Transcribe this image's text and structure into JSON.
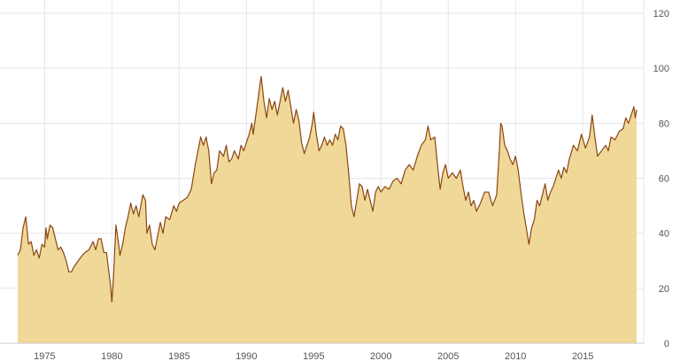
{
  "chart_data": {
    "type": "area",
    "title": "",
    "xlabel": "",
    "ylabel": "",
    "xlim": [
      1973,
      2019.2
    ],
    "ylim": [
      0,
      120
    ],
    "y_axis_position": "right",
    "grid": true,
    "x_ticks": [
      {
        "value": 1975,
        "label": "1975"
      },
      {
        "value": 1980,
        "label": "1980"
      },
      {
        "value": 1985,
        "label": "1985"
      },
      {
        "value": 1990,
        "label": "1990"
      },
      {
        "value": 1995,
        "label": "1995"
      },
      {
        "value": 2000,
        "label": "2000"
      },
      {
        "value": 2005,
        "label": "2005"
      },
      {
        "value": 2010,
        "label": "2010"
      },
      {
        "value": 2015,
        "label": "2015"
      }
    ],
    "y_ticks": [
      {
        "value": 0,
        "label": "0"
      },
      {
        "value": 20,
        "label": "20"
      },
      {
        "value": 40,
        "label": "40"
      },
      {
        "value": 60,
        "label": "60"
      },
      {
        "value": 80,
        "label": "80"
      },
      {
        "value": 100,
        "label": "100"
      },
      {
        "value": 120,
        "label": "120"
      }
    ],
    "colors": {
      "line": "#8b4513",
      "fill": "#f0d898",
      "grid": "#e6e6e6",
      "text": "#555555"
    },
    "points": [
      [
        1973.0,
        32
      ],
      [
        1973.2,
        34
      ],
      [
        1973.4,
        42
      ],
      [
        1973.6,
        46
      ],
      [
        1973.8,
        36
      ],
      [
        1974.0,
        37
      ],
      [
        1974.2,
        32
      ],
      [
        1974.4,
        34
      ],
      [
        1974.6,
        31
      ],
      [
        1974.8,
        36
      ],
      [
        1975.0,
        35
      ],
      [
        1975.1,
        42
      ],
      [
        1975.2,
        38
      ],
      [
        1975.4,
        43
      ],
      [
        1975.6,
        42
      ],
      [
        1975.8,
        38
      ],
      [
        1976.0,
        34
      ],
      [
        1976.2,
        35
      ],
      [
        1976.4,
        33
      ],
      [
        1976.6,
        30
      ],
      [
        1976.8,
        26
      ],
      [
        1977.0,
        26
      ],
      [
        1977.2,
        28
      ],
      [
        1977.5,
        30
      ],
      [
        1977.8,
        32
      ],
      [
        1978.0,
        33
      ],
      [
        1978.3,
        34
      ],
      [
        1978.6,
        37
      ],
      [
        1978.8,
        34
      ],
      [
        1979.0,
        38
      ],
      [
        1979.2,
        38
      ],
      [
        1979.4,
        33
      ],
      [
        1979.6,
        33
      ],
      [
        1979.8,
        25
      ],
      [
        1979.9,
        21
      ],
      [
        1980.0,
        15
      ],
      [
        1980.1,
        22
      ],
      [
        1980.3,
        43
      ],
      [
        1980.45,
        38
      ],
      [
        1980.6,
        32
      ],
      [
        1980.8,
        36
      ],
      [
        1981.0,
        42
      ],
      [
        1981.2,
        46
      ],
      [
        1981.4,
        51
      ],
      [
        1981.6,
        47
      ],
      [
        1981.8,
        50
      ],
      [
        1982.0,
        46
      ],
      [
        1982.3,
        54
      ],
      [
        1982.5,
        52
      ],
      [
        1982.6,
        40
      ],
      [
        1982.8,
        43
      ],
      [
        1983.0,
        36
      ],
      [
        1983.2,
        34
      ],
      [
        1983.4,
        39
      ],
      [
        1983.6,
        44
      ],
      [
        1983.8,
        40
      ],
      [
        1984.0,
        46
      ],
      [
        1984.3,
        45
      ],
      [
        1984.6,
        50
      ],
      [
        1984.8,
        48
      ],
      [
        1985.0,
        51
      ],
      [
        1985.3,
        52
      ],
      [
        1985.6,
        53
      ],
      [
        1985.9,
        56
      ],
      [
        1986.2,
        65
      ],
      [
        1986.4,
        70
      ],
      [
        1986.6,
        75
      ],
      [
        1986.8,
        72
      ],
      [
        1987.0,
        75
      ],
      [
        1987.2,
        70
      ],
      [
        1987.4,
        58
      ],
      [
        1987.6,
        62
      ],
      [
        1987.8,
        63
      ],
      [
        1988.0,
        70
      ],
      [
        1988.3,
        68
      ],
      [
        1988.5,
        72
      ],
      [
        1988.7,
        66
      ],
      [
        1988.9,
        67
      ],
      [
        1989.1,
        70
      ],
      [
        1989.4,
        67
      ],
      [
        1989.6,
        72
      ],
      [
        1989.8,
        70
      ],
      [
        1990.0,
        73
      ],
      [
        1990.2,
        76
      ],
      [
        1990.4,
        80
      ],
      [
        1990.5,
        76
      ],
      [
        1990.7,
        83
      ],
      [
        1990.9,
        90
      ],
      [
        1991.0,
        94
      ],
      [
        1991.1,
        97
      ],
      [
        1991.3,
        88
      ],
      [
        1991.5,
        82
      ],
      [
        1991.7,
        89
      ],
      [
        1991.9,
        85
      ],
      [
        1992.1,
        88
      ],
      [
        1992.3,
        83
      ],
      [
        1992.5,
        88
      ],
      [
        1992.7,
        93
      ],
      [
        1992.9,
        88
      ],
      [
        1993.1,
        92
      ],
      [
        1993.3,
        86
      ],
      [
        1993.5,
        80
      ],
      [
        1993.7,
        85
      ],
      [
        1993.9,
        81
      ],
      [
        1994.1,
        73
      ],
      [
        1994.3,
        69
      ],
      [
        1994.5,
        72
      ],
      [
        1994.7,
        75
      ],
      [
        1994.9,
        80
      ],
      [
        1995.0,
        84
      ],
      [
        1995.2,
        76
      ],
      [
        1995.4,
        70
      ],
      [
        1995.6,
        72
      ],
      [
        1995.8,
        75
      ],
      [
        1996.0,
        72
      ],
      [
        1996.2,
        74
      ],
      [
        1996.4,
        72
      ],
      [
        1996.6,
        76
      ],
      [
        1996.8,
        74
      ],
      [
        1997.0,
        79
      ],
      [
        1997.2,
        78
      ],
      [
        1997.4,
        72
      ],
      [
        1997.6,
        62
      ],
      [
        1997.8,
        50
      ],
      [
        1998.0,
        46
      ],
      [
        1998.2,
        52
      ],
      [
        1998.4,
        58
      ],
      [
        1998.6,
        57
      ],
      [
        1998.8,
        52
      ],
      [
        1999.0,
        56
      ],
      [
        1999.2,
        52
      ],
      [
        1999.4,
        48
      ],
      [
        1999.6,
        55
      ],
      [
        1999.8,
        57
      ],
      [
        2000.0,
        55
      ],
      [
        2000.3,
        57
      ],
      [
        2000.6,
        56
      ],
      [
        2000.9,
        59
      ],
      [
        2001.2,
        60
      ],
      [
        2001.5,
        58
      ],
      [
        2001.8,
        63
      ],
      [
        2002.1,
        65
      ],
      [
        2002.4,
        63
      ],
      [
        2002.7,
        68
      ],
      [
        2003.0,
        72
      ],
      [
        2003.3,
        74
      ],
      [
        2003.5,
        79
      ],
      [
        2003.7,
        74
      ],
      [
        2004.0,
        75
      ],
      [
        2004.2,
        65
      ],
      [
        2004.4,
        56
      ],
      [
        2004.6,
        62
      ],
      [
        2004.8,
        65
      ],
      [
        2005.0,
        60
      ],
      [
        2005.3,
        62
      ],
      [
        2005.6,
        60
      ],
      [
        2005.9,
        63
      ],
      [
        2006.1,
        57
      ],
      [
        2006.3,
        52
      ],
      [
        2006.5,
        55
      ],
      [
        2006.7,
        50
      ],
      [
        2006.9,
        52
      ],
      [
        2007.1,
        48
      ],
      [
        2007.4,
        51
      ],
      [
        2007.7,
        55
      ],
      [
        2008.0,
        55
      ],
      [
        2008.3,
        50
      ],
      [
        2008.6,
        54
      ],
      [
        2008.8,
        70
      ],
      [
        2008.9,
        80
      ],
      [
        2009.0,
        79
      ],
      [
        2009.2,
        72
      ],
      [
        2009.4,
        70
      ],
      [
        2009.6,
        67
      ],
      [
        2009.8,
        65
      ],
      [
        2010.0,
        68
      ],
      [
        2010.2,
        63
      ],
      [
        2010.4,
        55
      ],
      [
        2010.6,
        48
      ],
      [
        2010.8,
        42
      ],
      [
        2011.0,
        36
      ],
      [
        2011.2,
        42
      ],
      [
        2011.4,
        45
      ],
      [
        2011.6,
        52
      ],
      [
        2011.8,
        50
      ],
      [
        2012.0,
        54
      ],
      [
        2012.2,
        58
      ],
      [
        2012.4,
        52
      ],
      [
        2012.6,
        55
      ],
      [
        2012.8,
        57
      ],
      [
        2013.0,
        60
      ],
      [
        2013.2,
        63
      ],
      [
        2013.4,
        60
      ],
      [
        2013.6,
        64
      ],
      [
        2013.8,
        62
      ],
      [
        2014.0,
        67
      ],
      [
        2014.3,
        72
      ],
      [
        2014.6,
        70
      ],
      [
        2014.9,
        76
      ],
      [
        2015.2,
        71
      ],
      [
        2015.5,
        75
      ],
      [
        2015.7,
        83
      ],
      [
        2015.9,
        75
      ],
      [
        2016.1,
        68
      ],
      [
        2016.4,
        70
      ],
      [
        2016.7,
        72
      ],
      [
        2016.9,
        70
      ],
      [
        2017.1,
        75
      ],
      [
        2017.4,
        74
      ],
      [
        2017.7,
        77
      ],
      [
        2018.0,
        78
      ],
      [
        2018.2,
        82
      ],
      [
        2018.4,
        80
      ],
      [
        2018.6,
        83
      ],
      [
        2018.8,
        86
      ],
      [
        2018.9,
        82
      ],
      [
        2019.0,
        85
      ]
    ]
  }
}
